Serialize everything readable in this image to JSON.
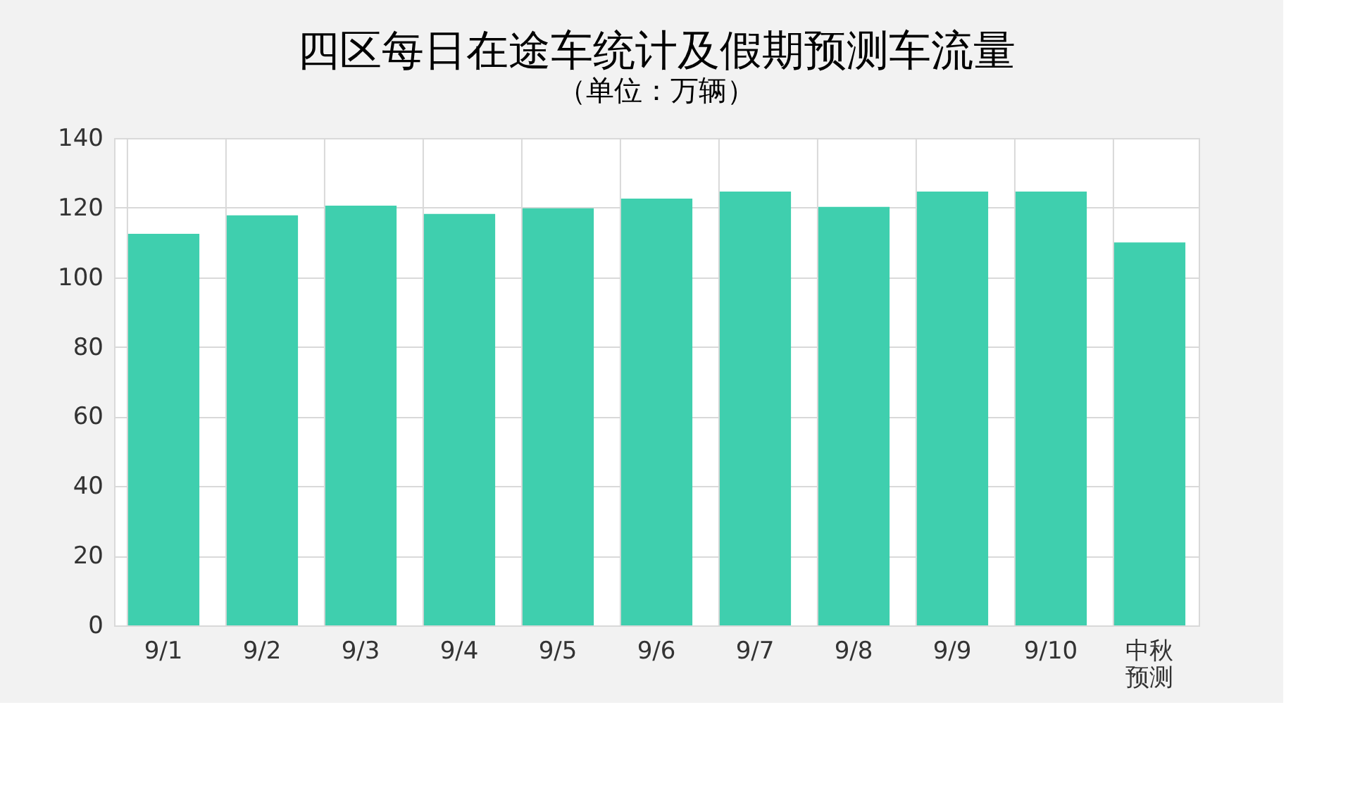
{
  "chart_data": {
    "type": "bar",
    "title": "四区每日在途车统计及假期预测车流量",
    "subtitle": "（单位：万辆）",
    "categories": [
      "9/1",
      "9/2",
      "9/3",
      "9/4",
      "9/5",
      "9/6",
      "9/7",
      "9/8",
      "9/9",
      "9/10",
      "中秋预测"
    ],
    "values": [
      112.5,
      117.8,
      120.6,
      118.2,
      119.8,
      122.6,
      124.6,
      120.2,
      124.6,
      124.6,
      110
    ],
    "color": "#3fcfae",
    "ylim": [
      0,
      140
    ],
    "yticks": [
      0,
      20,
      40,
      60,
      80,
      100,
      120,
      140
    ],
    "grid": true
  }
}
